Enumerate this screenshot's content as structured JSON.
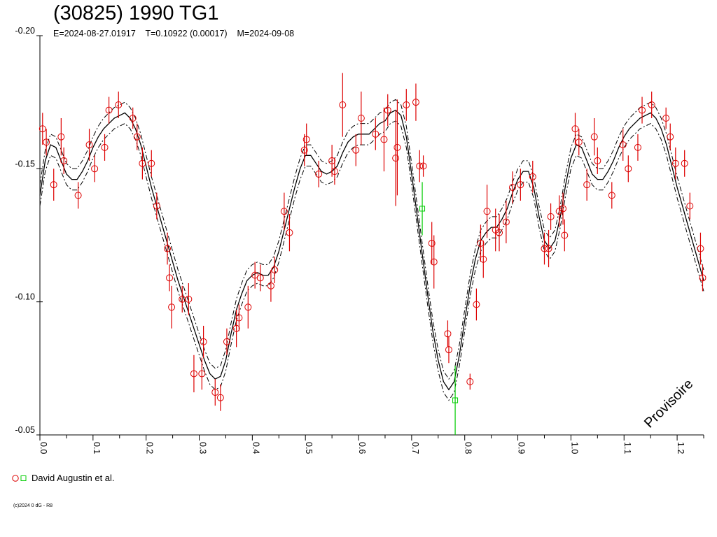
{
  "header": {
    "title": "(30825) 1990 TG1",
    "subtitle": "E=2024-08-27.01917    T=0.10922 (0.00017)    M=2024-09-08"
  },
  "watermark": "Provisoire",
  "legend": {
    "label": "David Augustin et al."
  },
  "copyright": "(c)2024 0 dG - R8",
  "colors": {
    "series_red": "#dd0000",
    "series_green": "#00cc00",
    "fit": "#000000"
  },
  "chart_data": {
    "type": "scatter",
    "title": "(30825) 1990 TG1",
    "xlim": [
      0,
      1.25
    ],
    "ylim": [
      -0.2,
      -0.05
    ],
    "x_ticks": [
      0.0,
      0.1,
      0.2,
      0.3,
      0.4,
      0.5,
      0.6,
      0.7,
      0.8,
      0.9,
      1.0,
      1.1,
      1.2
    ],
    "x_tick_labels": [
      "0.0",
      "0.1",
      "0.2",
      "0.3",
      "0.4",
      "0.5",
      "0.6",
      "0.7",
      "0.8",
      "0.9",
      "1.0",
      "1.1",
      "1.2"
    ],
    "y_ticks": [
      -0.2,
      -0.15,
      -0.1,
      -0.05
    ],
    "y_tick_labels": [
      "-0.20",
      "-0.15",
      "-0.10",
      "-0.05"
    ],
    "series": [
      {
        "name": "David Augustin et al.",
        "color": "#dd0000",
        "marker": "circle",
        "points": [
          [
            0.005,
            -0.165,
            0.006
          ],
          [
            0.012,
            -0.16,
            0.005
          ],
          [
            0.026,
            -0.144,
            0.006
          ],
          [
            0.04,
            -0.162,
            0.007
          ],
          [
            0.045,
            -0.153,
            0.005
          ],
          [
            0.072,
            -0.14,
            0.005
          ],
          [
            0.093,
            -0.159,
            0.006
          ],
          [
            0.103,
            -0.15,
            0.005
          ],
          [
            0.122,
            -0.158,
            0.005
          ],
          [
            0.13,
            -0.172,
            0.005
          ],
          [
            0.148,
            -0.174,
            0.005
          ],
          [
            0.175,
            -0.169,
            0.004
          ],
          [
            0.183,
            -0.162,
            0.005
          ],
          [
            0.193,
            -0.152,
            0.006
          ],
          [
            0.21,
            -0.152,
            0.005
          ],
          [
            0.22,
            -0.136,
            0.005
          ],
          [
            0.24,
            -0.12,
            0.006
          ],
          [
            0.244,
            -0.109,
            0.005
          ],
          [
            0.248,
            -0.098,
            0.008
          ],
          [
            0.268,
            -0.101,
            0.005
          ],
          [
            0.28,
            -0.101,
            0.006
          ],
          [
            0.29,
            -0.073,
            0.007
          ],
          [
            0.305,
            -0.073,
            0.006
          ],
          [
            0.308,
            -0.085,
            0.006
          ],
          [
            0.33,
            -0.066,
            0.005
          ],
          [
            0.34,
            -0.064,
            0.005
          ],
          [
            0.352,
            -0.085,
            0.005
          ],
          [
            0.37,
            -0.09,
            0.007
          ],
          [
            0.375,
            -0.094,
            0.005
          ],
          [
            0.392,
            -0.098,
            0.008
          ],
          [
            0.405,
            -0.11,
            0.005
          ],
          [
            0.415,
            -0.109,
            0.005
          ],
          [
            0.435,
            -0.106,
            0.006
          ],
          [
            0.442,
            -0.112,
            0.005
          ],
          [
            0.46,
            -0.134,
            0.007
          ],
          [
            0.47,
            -0.126,
            0.007
          ],
          [
            0.498,
            -0.157,
            0.006
          ],
          [
            0.502,
            -0.161,
            0.006
          ],
          [
            0.525,
            -0.148,
            0.005
          ],
          [
            0.55,
            -0.153,
            0.006
          ],
          [
            0.555,
            -0.149,
            0.005
          ],
          [
            0.57,
            -0.174,
            0.012
          ],
          [
            0.595,
            -0.157,
            0.006
          ],
          [
            0.605,
            -0.169,
            0.01
          ],
          [
            0.632,
            -0.163,
            0.006
          ],
          [
            0.648,
            -0.161,
            0.012
          ],
          [
            0.655,
            -0.172,
            0.006
          ],
          [
            0.67,
            -0.154,
            0.018
          ],
          [
            0.673,
            -0.158,
            0.018
          ],
          [
            0.69,
            -0.174,
            0.006
          ],
          [
            0.708,
            -0.175,
            0.007
          ],
          [
            0.715,
            -0.151,
            0.006
          ],
          [
            0.722,
            -0.151,
            0.004
          ],
          [
            0.738,
            -0.122,
            0.008
          ],
          [
            0.742,
            -0.115,
            0.01
          ],
          [
            0.768,
            -0.088,
            0.005
          ],
          [
            0.77,
            -0.082,
            0.005
          ],
          [
            0.81,
            -0.07,
            0.003
          ],
          [
            0.822,
            -0.099,
            0.006
          ],
          [
            0.83,
            -0.122,
            0.007
          ],
          [
            0.835,
            -0.116,
            0.007
          ],
          [
            0.842,
            -0.134,
            0.01
          ],
          [
            0.858,
            -0.127,
            0.008
          ],
          [
            0.865,
            -0.126,
            0.007
          ],
          [
            0.878,
            -0.13,
            0.008
          ],
          [
            0.89,
            -0.143,
            0.006
          ],
          [
            0.905,
            -0.144,
            0.006
          ],
          [
            0.928,
            -0.147,
            0.006
          ],
          [
            0.95,
            -0.12,
            0.006
          ],
          [
            0.958,
            -0.12,
            0.007
          ],
          [
            0.962,
            -0.132,
            0.005
          ],
          [
            0.978,
            -0.134,
            0.006
          ],
          [
            0.985,
            -0.135,
            0.006
          ],
          [
            0.988,
            -0.125,
            0.006
          ],
          [
            1.008,
            -0.165,
            0.006
          ],
          [
            1.015,
            -0.16,
            0.005
          ],
          [
            1.03,
            -0.144,
            0.006
          ],
          [
            1.044,
            -0.162,
            0.007
          ],
          [
            1.05,
            -0.153,
            0.005
          ],
          [
            1.077,
            -0.14,
            0.005
          ],
          [
            1.098,
            -0.159,
            0.006
          ],
          [
            1.108,
            -0.15,
            0.005
          ],
          [
            1.126,
            -0.158,
            0.005
          ],
          [
            1.134,
            -0.172,
            0.005
          ],
          [
            1.152,
            -0.174,
            0.005
          ],
          [
            1.179,
            -0.169,
            0.004
          ],
          [
            1.187,
            -0.162,
            0.005
          ],
          [
            1.197,
            -0.152,
            0.006
          ],
          [
            1.214,
            -0.152,
            0.005
          ],
          [
            1.224,
            -0.136,
            0.005
          ],
          [
            1.244,
            -0.12,
            0.006
          ],
          [
            1.248,
            -0.109,
            0.005
          ]
        ]
      },
      {
        "name": "David Augustin et al.",
        "color": "#00cc00",
        "marker": "square",
        "points": [
          [
            0.72,
            -0.135,
            0.01
          ],
          [
            0.782,
            -0.063,
            0.013
          ]
        ]
      }
    ],
    "fit": {
      "x": [
        0.0,
        0.01,
        0.02,
        0.03,
        0.04,
        0.05,
        0.06,
        0.07,
        0.08,
        0.09,
        0.1,
        0.11,
        0.12,
        0.13,
        0.14,
        0.15,
        0.16,
        0.17,
        0.18,
        0.19,
        0.2,
        0.21,
        0.22,
        0.23,
        0.24,
        0.25,
        0.26,
        0.27,
        0.28,
        0.29,
        0.3,
        0.31,
        0.32,
        0.33,
        0.34,
        0.35,
        0.36,
        0.37,
        0.38,
        0.39,
        0.4,
        0.41,
        0.42,
        0.43,
        0.44,
        0.45,
        0.46,
        0.47,
        0.48,
        0.49,
        0.5,
        0.51,
        0.52,
        0.53,
        0.54,
        0.55,
        0.56,
        0.57,
        0.58,
        0.59,
        0.6,
        0.61,
        0.62,
        0.63,
        0.64,
        0.65,
        0.66,
        0.67,
        0.68,
        0.69,
        0.7,
        0.71,
        0.72,
        0.73,
        0.74,
        0.75,
        0.76,
        0.77,
        0.78,
        0.79,
        0.8,
        0.81,
        0.82,
        0.83,
        0.84,
        0.85,
        0.86,
        0.87,
        0.88,
        0.89,
        0.9,
        0.91,
        0.92,
        0.93,
        0.94,
        0.95,
        0.96,
        0.97,
        0.98,
        0.99,
        1.0,
        1.01,
        1.02,
        1.03,
        1.04,
        1.05,
        1.06,
        1.07,
        1.08,
        1.09,
        1.1,
        1.11,
        1.12,
        1.13,
        1.14,
        1.15,
        1.16,
        1.17,
        1.18,
        1.19,
        1.2,
        1.21,
        1.22,
        1.23,
        1.24,
        1.25
      ],
      "y": [
        -0.14,
        -0.153,
        -0.159,
        -0.158,
        -0.153,
        -0.148,
        -0.146,
        -0.146,
        -0.149,
        -0.153,
        -0.158,
        -0.162,
        -0.165,
        -0.167,
        -0.169,
        -0.17,
        -0.171,
        -0.169,
        -0.165,
        -0.159,
        -0.151,
        -0.143,
        -0.136,
        -0.129,
        -0.122,
        -0.115,
        -0.108,
        -0.102,
        -0.096,
        -0.09,
        -0.084,
        -0.078,
        -0.073,
        -0.071,
        -0.072,
        -0.078,
        -0.088,
        -0.097,
        -0.103,
        -0.108,
        -0.11,
        -0.111,
        -0.11,
        -0.11,
        -0.113,
        -0.119,
        -0.127,
        -0.135,
        -0.143,
        -0.15,
        -0.155,
        -0.155,
        -0.152,
        -0.149,
        -0.148,
        -0.149,
        -0.151,
        -0.156,
        -0.16,
        -0.162,
        -0.163,
        -0.163,
        -0.163,
        -0.165,
        -0.167,
        -0.168,
        -0.171,
        -0.172,
        -0.17,
        -0.162,
        -0.148,
        -0.133,
        -0.118,
        -0.103,
        -0.089,
        -0.078,
        -0.07,
        -0.067,
        -0.07,
        -0.08,
        -0.093,
        -0.106,
        -0.116,
        -0.123,
        -0.126,
        -0.128,
        -0.128,
        -0.131,
        -0.135,
        -0.141,
        -0.146,
        -0.149,
        -0.149,
        -0.143,
        -0.132,
        -0.123,
        -0.12,
        -0.123,
        -0.132,
        -0.144,
        -0.154,
        -0.159,
        -0.158,
        -0.153,
        -0.148,
        -0.146,
        -0.146,
        -0.149,
        -0.153,
        -0.158,
        -0.162,
        -0.165,
        -0.167,
        -0.169,
        -0.17,
        -0.171,
        -0.169,
        -0.165,
        -0.159,
        -0.151,
        -0.143,
        -0.136,
        -0.129,
        -0.122,
        -0.115,
        -0.108
      ],
      "band": 0.004
    }
  }
}
